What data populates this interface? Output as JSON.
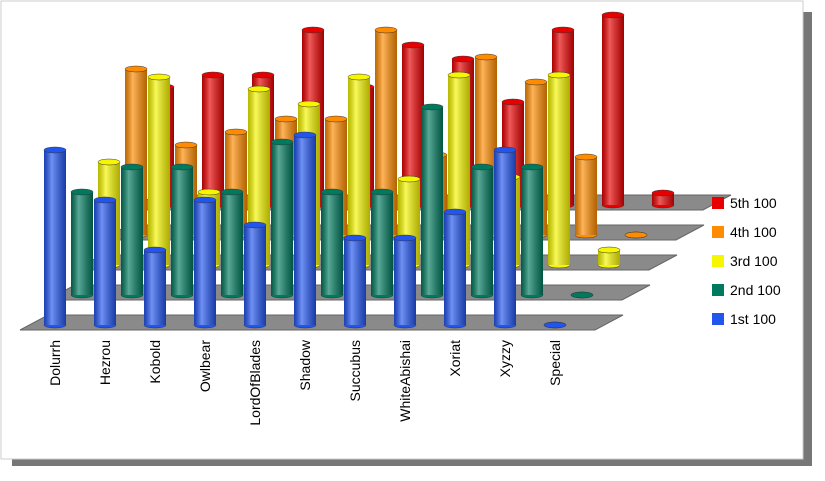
{
  "chart_data": {
    "type": "bar3d",
    "categories": [
      "Dolurrh",
      "Hezrou",
      "Kobold",
      "Owlbear",
      "LordOfBlades",
      "Shadow",
      "Succubus",
      "WhiteAbishai",
      "Xoriat",
      "Xyzzy",
      "Special"
    ],
    "series": [
      {
        "name": "5th 100",
        "color": "#e80000",
        "values": [
          118,
          130,
          130,
          175,
          118,
          160,
          146,
          103,
          175,
          190,
          12
        ]
      },
      {
        "name": "4th 100",
        "color": "#ff8c00",
        "values": [
          166,
          90,
          103,
          116,
          116,
          205,
          80,
          178,
          153,
          78,
          0
        ]
      },
      {
        "name": "3rd 100",
        "color": "#f6f600",
        "values": [
          103,
          188,
          73,
          176,
          161,
          188,
          86,
          190,
          88,
          190,
          15
        ]
      },
      {
        "name": "2nd 100",
        "color": "#007a5e",
        "values": [
          103,
          128,
          128,
          103,
          153,
          103,
          103,
          188,
          128,
          128,
          0
        ]
      },
      {
        "name": "1st 100",
        "color": "#2255ee",
        "values": [
          175,
          125,
          75,
          125,
          100,
          190,
          87,
          87,
          113,
          175,
          0
        ]
      }
    ],
    "legend": "right"
  }
}
